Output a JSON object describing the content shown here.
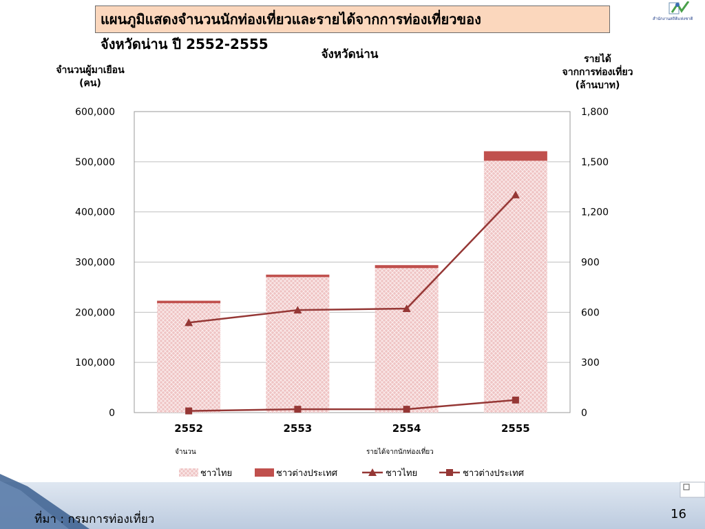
{
  "title": {
    "line1": "แผนภูมิแสดงจำนวนนักท่องเที่ยวและรายได้จากการท่องเที่ยวของ",
    "line2": "จังหวัดน่าน ปี 2552-2555"
  },
  "chart_data": {
    "type": "bar",
    "title": "จังหวัดน่าน",
    "categories": [
      "2552",
      "2553",
      "2554",
      "2555"
    ],
    "y_left": {
      "label_lines": [
        "จำนวนผู้มาเยือน",
        "(คน)"
      ],
      "range": [
        0,
        600000
      ],
      "ticks": [
        "0",
        "100,000",
        "200,000",
        "300,000",
        "400,000",
        "500,000",
        "600,000"
      ]
    },
    "y_right": {
      "label_lines": [
        "รายได้",
        "จากการท่องเที่ยว",
        "(ล้านบาท)"
      ],
      "range": [
        0,
        1800
      ],
      "ticks": [
        "0",
        "300",
        "600",
        "900",
        "1,200",
        "1,500",
        "1,800"
      ]
    },
    "stacked_bars": [
      {
        "name": "ชาวไทย",
        "values": [
          218000,
          270000,
          288000,
          502000
        ],
        "color": "#efc4c4"
      },
      {
        "name": "ชาวต่างประเทศ",
        "values": [
          5000,
          5000,
          6000,
          19000
        ],
        "color": "#c0504d"
      }
    ],
    "lines": [
      {
        "name": "ชาวไทย",
        "axis": "right",
        "values": [
          538,
          613,
          622,
          1302
        ],
        "marker": "triangle",
        "color": "#953735"
      },
      {
        "name": "ชาวต่างประเทศ",
        "axis": "right",
        "values": [
          10,
          20,
          20,
          75
        ],
        "marker": "square",
        "color": "#953735"
      }
    ],
    "legend_groups": [
      "จำนวน",
      "รายได้จากนักท่องเที่ยว"
    ],
    "legend_placement": "bottom",
    "grid": true
  },
  "footer": {
    "source": "ที่มา : กรมการท่องเที่ยว",
    "page_number": "16"
  },
  "logo": {
    "text": "สำนักงานสถิติแห่งชาติ"
  }
}
